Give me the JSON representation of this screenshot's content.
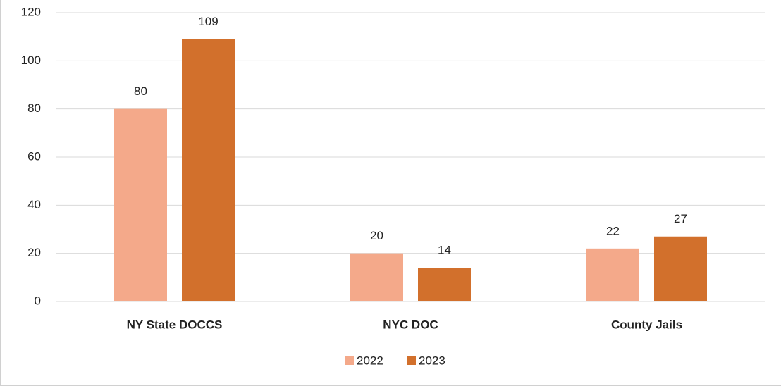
{
  "chart_data": {
    "type": "bar",
    "categories": [
      "NY State DOCCS",
      "NYC DOC",
      "County Jails"
    ],
    "series": [
      {
        "name": "2022",
        "color": "#f4a98a",
        "values": [
          80,
          20,
          22
        ]
      },
      {
        "name": "2023",
        "color": "#d2702c",
        "values": [
          109,
          14,
          27
        ]
      }
    ],
    "ylim": [
      0,
      120
    ],
    "yticks": [
      0,
      20,
      40,
      60,
      80,
      100,
      120
    ],
    "grid": true,
    "legend": "bottom"
  }
}
